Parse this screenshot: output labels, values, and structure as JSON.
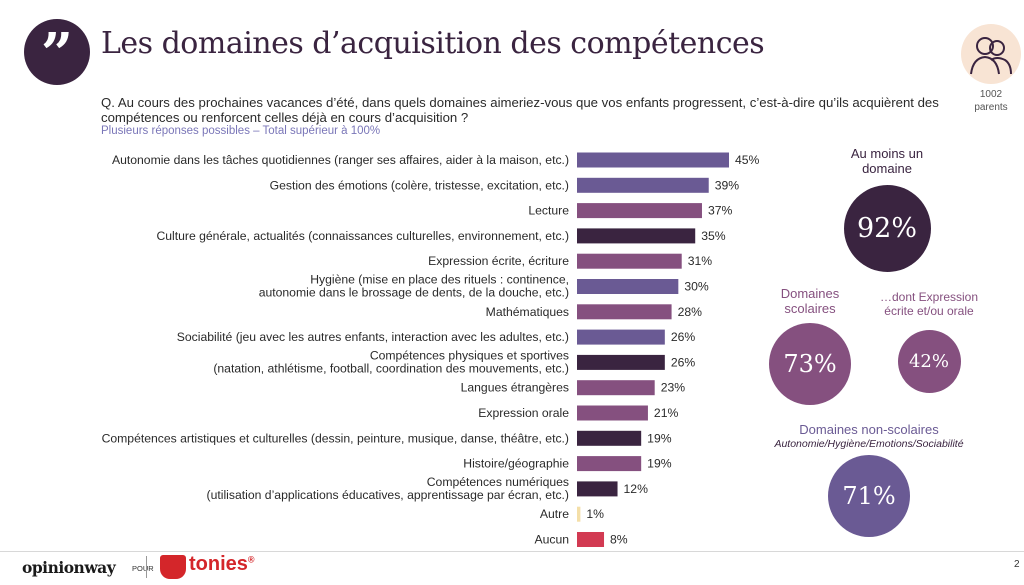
{
  "header": {
    "quote_glyph": "”",
    "title": "Les domaines d’acquisition des compétences",
    "parents_count": "1002",
    "parents_label": "parents"
  },
  "question": "Q. Au cours des prochaines vacances d’été, dans quels domaines aimeriez-vous que vos enfants progressent, c’est-à-dire qu’ils acquièrent des compétences ou renforcent celles déjà en cours d’acquisition ?",
  "note": "Plusieurs réponses possibles – Total supérieur à 100%",
  "colors": {
    "dark_purple": "#3a2440",
    "violet": "#6a5a94",
    "magenta": "#85507f",
    "cream": "#f4dfa8",
    "red": "#d23a52",
    "circle_large": "#3a2440",
    "circle_mid": "#85507f",
    "circle_nonscolaire": "#6a5a94"
  },
  "chart_data": {
    "type": "bar",
    "orientation": "horizontal",
    "unit": "%",
    "categories": [
      [
        "Autonomie dans les tâches quotidiennes (ranger ses affaires, aider à la maison, etc.)"
      ],
      [
        "Gestion des émotions (colère, tristesse, excitation, etc.)"
      ],
      [
        "Lecture"
      ],
      [
        "Culture générale, actualités (connaissances culturelles, environnement, etc.)"
      ],
      [
        "Expression écrite, écriture"
      ],
      [
        "Hygiène (mise en place des rituels : continence,",
        "autonomie dans le brossage de dents, de la douche, etc.)"
      ],
      [
        "Mathématiques"
      ],
      [
        "Sociabilité (jeu avec les autres enfants, interaction avec les adultes, etc.)"
      ],
      [
        "Compétences physiques et sportives",
        "(natation, athlétisme, football, coordination des mouvements, etc.)"
      ],
      [
        "Langues étrangères"
      ],
      [
        "Expression orale"
      ],
      [
        "Compétences artistiques et culturelles (dessin, peinture, musique, danse, théâtre, etc.)"
      ],
      [
        "Histoire/géographie"
      ],
      [
        "Compétences numériques",
        "(utilisation d’applications éducatives, apprentissage par écran, etc.)"
      ],
      [
        "Autre"
      ],
      [
        "Aucun"
      ]
    ],
    "values": [
      45,
      39,
      37,
      35,
      31,
      30,
      28,
      26,
      26,
      23,
      21,
      19,
      19,
      12,
      1,
      8
    ],
    "colors": [
      "violet",
      "violet",
      "magenta",
      "dark_purple",
      "magenta",
      "violet",
      "magenta",
      "violet",
      "dark_purple",
      "magenta",
      "magenta",
      "dark_purple",
      "magenta",
      "dark_purple",
      "cream",
      "red"
    ]
  },
  "summary": {
    "any": {
      "title": "Au moins un domaine",
      "value": "92%"
    },
    "school": {
      "title": "Domaines scolaires",
      "value": "73%"
    },
    "school_expression": {
      "title": "…dont Expression écrite et/ou orale",
      "value": "42%"
    },
    "nonschool": {
      "title": "Domaines non-scolaires",
      "subtitle": "Autonomie/Hygiène/Emotions/Sociabilité",
      "value": "71%"
    }
  },
  "footer": {
    "brand_left": "opinionway",
    "pour": "POUR",
    "brand_right": "tonies",
    "brand_right_mark": "®",
    "page_number": "2"
  }
}
